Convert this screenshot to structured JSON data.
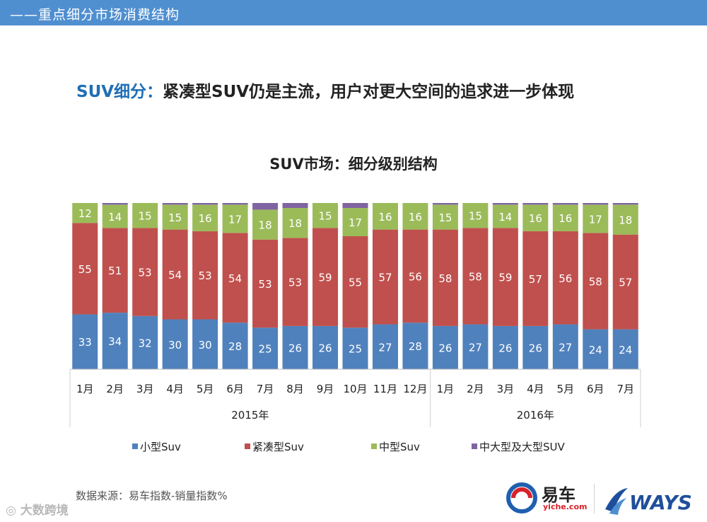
{
  "header": {
    "title": "——重点细分市场消费结构"
  },
  "headline": {
    "prefix": "SUV细分：",
    "text": "紧凑型SUV仍是主流，用户对更大空间的追求进一步体现"
  },
  "chart_data": {
    "type": "bar",
    "stacked": true,
    "percent": true,
    "title": "SUV市场：细分级别结构",
    "categories": [
      "1月",
      "2月",
      "3月",
      "4月",
      "5月",
      "6月",
      "7月",
      "8月",
      "9月",
      "10月",
      "11月",
      "12月",
      "1月",
      "2月",
      "3月",
      "4月",
      "5月",
      "6月",
      "7月"
    ],
    "groups": [
      {
        "label": "2015年",
        "count": 12
      },
      {
        "label": "2016年",
        "count": 7
      }
    ],
    "series": [
      {
        "name": "小型Suv",
        "color": "#4f81bd",
        "values": [
          33,
          34,
          32,
          30,
          30,
          28,
          25,
          26,
          26,
          25,
          27,
          28,
          26,
          27,
          26,
          26,
          27,
          24,
          24
        ]
      },
      {
        "name": "紧凑型Suv",
        "color": "#c0504d",
        "values": [
          55,
          51,
          53,
          54,
          53,
          54,
          53,
          53,
          59,
          55,
          57,
          56,
          58,
          58,
          59,
          57,
          56,
          58,
          57
        ]
      },
      {
        "name": "中型Suv",
        "color": "#9bbb59",
        "values": [
          12,
          14,
          15,
          15,
          16,
          17,
          18,
          18,
          15,
          17,
          16,
          16,
          15,
          15,
          14,
          16,
          16,
          17,
          18
        ]
      },
      {
        "name": "中大型及大型SUV",
        "color": "#8064a2",
        "values": [
          0,
          1,
          0,
          1,
          1,
          1,
          4,
          3,
          0,
          3,
          0,
          0,
          1,
          0,
          1,
          1,
          1,
          1,
          1
        ]
      }
    ],
    "ylim": [
      0,
      100
    ],
    "xlabel": "",
    "ylabel": "",
    "legend_position": "bottom",
    "source": "数据来源：易车指数-销量指数%"
  },
  "footer": {
    "watermark": "大数跨境",
    "logo_yiche": "易车",
    "logo_yiche_sub": "yiche.com",
    "logo_ways": "WAYS"
  }
}
